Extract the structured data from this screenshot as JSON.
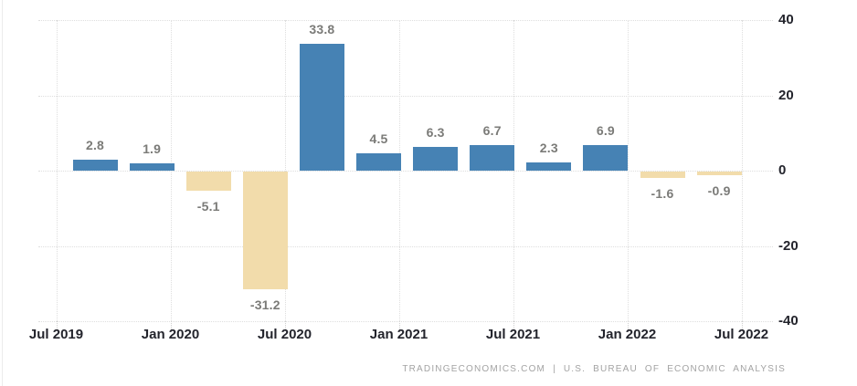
{
  "chart": {
    "attribution": "TRADINGECONOMICS.COM | U.S. BUREAU OF ECONOMIC ANALYSIS"
  },
  "chart_data": {
    "type": "bar",
    "title": "",
    "xlabel": "",
    "ylabel": "",
    "ylim": [
      -40,
      40
    ],
    "grid": "dotted",
    "legend": "none",
    "x_tick_labels": [
      "Jul 2019",
      "Jan 2020",
      "Jul 2020",
      "Jan 2021",
      "Jul 2021",
      "Jan 2022",
      "Jul 2022"
    ],
    "y_tick_labels": [
      "40",
      "20",
      "0",
      "-20",
      "-40"
    ],
    "y_tick_values": [
      40,
      20,
      0,
      -20,
      -40
    ],
    "values": [
      2.8,
      1.9,
      -5.1,
      -31.2,
      33.8,
      4.5,
      6.3,
      6.7,
      2.3,
      6.9,
      -1.6,
      -0.9
    ],
    "data_labels": [
      "2.8",
      "1.9",
      "-5.1",
      "-31.2",
      "33.8",
      "4.5",
      "6.3",
      "6.7",
      "2.3",
      "6.9",
      "-1.6",
      "-0.9"
    ],
    "colors": {
      "positive_bar": "#4682b4",
      "negative_bar": "#f2dcab",
      "value_label": "#7b7b78",
      "axis_label": "#23242c",
      "gridline": "#dedede",
      "attribution": "#a3a3a3"
    }
  }
}
